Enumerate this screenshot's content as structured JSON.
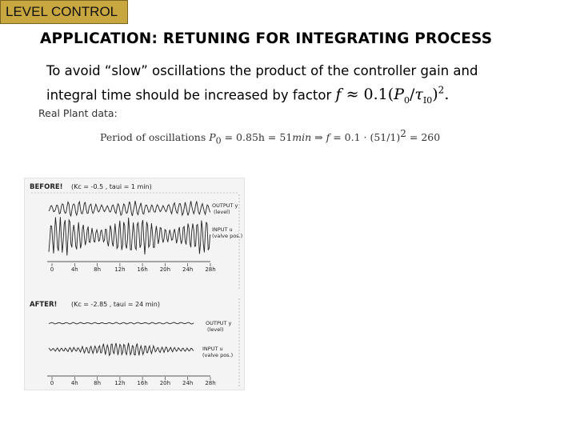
{
  "header": {
    "tag": "LEVEL CONTROL"
  },
  "slide": {
    "title": "APPLICATION: RETUNING FOR INTEGRATING PROCESS",
    "intro_line1": "To avoid “slow” oscillations the product of the controller gain and",
    "intro_line2": "integral time should be increased by factor",
    "formula": {
      "f": "f",
      "approx": " ≈ 0.1(",
      "P0": "P",
      "P0_sub": "0",
      "slash": "/",
      "tau": "τ",
      "tau_sub": "I0",
      "close": ")",
      "power": "2",
      "end": "."
    },
    "plant_label": "Real Plant data:",
    "period": {
      "text": "Period of oscillations ",
      "P0": "P",
      "P0_sub": "0",
      "eq1": " = 0.85h = 51",
      "min": "min",
      "arrow": " ⇒ ",
      "f": "f",
      "eq2": " = 0.1 · (51/1)",
      "power": "2",
      "eq3": " = 260"
    }
  },
  "scan": {
    "before": {
      "heading": "BEFORE!",
      "params": "(Kc = -0.5 , taui = 1 min)",
      "output_label_1": "OUTPUT y",
      "output_label_2": "(level)",
      "input_label_1": "INPUT u",
      "input_label_2": "(valve pos.)",
      "ticks": [
        "0",
        "4h",
        "8h",
        "12h",
        "16h",
        "20h",
        "24h",
        "28h"
      ]
    },
    "after": {
      "heading": "AFTER!",
      "params": "(Kc = -2.85 , taui = 24 min)",
      "output_label_1": "OUTPUT y",
      "output_label_2": "(level)",
      "input_label_1": "INPUT u",
      "input_label_2": "(valve pos.)",
      "ticks": [
        "0",
        "4h",
        "8h",
        "12h",
        "16h",
        "20h",
        "24h",
        "28h"
      ]
    }
  }
}
